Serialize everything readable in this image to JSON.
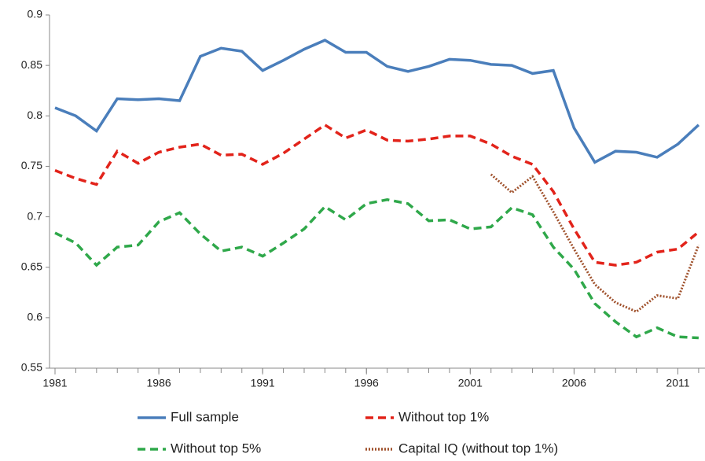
{
  "chart_data": {
    "type": "line",
    "x": [
      1981,
      1982,
      1983,
      1984,
      1985,
      1986,
      1987,
      1988,
      1989,
      1990,
      1991,
      1992,
      1993,
      1994,
      1995,
      1996,
      1997,
      1998,
      1999,
      2000,
      2001,
      2002,
      2003,
      2004,
      2005,
      2006,
      2007,
      2008,
      2009,
      2010,
      2011,
      2012
    ],
    "series": [
      {
        "name": "Full sample",
        "color": "#4a7ebb",
        "dash": "solid",
        "values": [
          0.808,
          0.8,
          0.785,
          0.817,
          0.816,
          0.817,
          0.815,
          0.859,
          0.867,
          0.864,
          0.845,
          0.855,
          0.866,
          0.875,
          0.863,
          0.863,
          0.849,
          0.844,
          0.849,
          0.856,
          0.855,
          0.851,
          0.85,
          0.842,
          0.845,
          0.788,
          0.754,
          0.765,
          0.764,
          0.759,
          0.772,
          0.791
        ]
      },
      {
        "name": "Without top 1%",
        "color": "#e2231a",
        "dash": "dashed",
        "values": [
          0.746,
          0.738,
          0.732,
          0.765,
          0.753,
          0.764,
          0.769,
          0.772,
          0.761,
          0.762,
          0.752,
          0.763,
          0.777,
          0.791,
          0.778,
          0.786,
          0.776,
          0.775,
          0.777,
          0.78,
          0.78,
          0.772,
          0.76,
          0.752,
          0.725,
          0.688,
          0.655,
          0.652,
          0.655,
          0.665,
          0.668,
          0.685
        ]
      },
      {
        "name": "Without top 5%",
        "color": "#2fa84a",
        "dash": "dashed",
        "values": [
          0.684,
          0.674,
          0.652,
          0.67,
          0.672,
          0.695,
          0.704,
          0.683,
          0.666,
          0.67,
          0.661,
          0.674,
          0.688,
          0.71,
          0.697,
          0.713,
          0.717,
          0.713,
          0.696,
          0.697,
          0.688,
          0.69,
          0.709,
          0.702,
          0.67,
          0.648,
          0.614,
          0.596,
          0.581,
          0.59,
          0.581,
          0.58
        ]
      },
      {
        "name": "Capital IQ (without top 1%)",
        "color": "#a0522d",
        "dash": "dotted",
        "values": [
          null,
          null,
          null,
          null,
          null,
          null,
          null,
          null,
          null,
          null,
          null,
          null,
          null,
          null,
          null,
          null,
          null,
          null,
          null,
          null,
          null,
          0.742,
          0.724,
          0.74,
          0.705,
          0.668,
          0.633,
          0.615,
          0.606,
          0.622,
          0.619,
          0.672
        ]
      }
    ],
    "xlim": [
      1980.735,
      2012.155
    ],
    "xticks": [
      1981,
      1986,
      1991,
      1996,
      2001,
      2006,
      2011
    ],
    "ylim": [
      0.55,
      0.9
    ],
    "yticks": [
      0.55,
      0.6,
      0.65,
      0.7,
      0.75,
      0.8,
      0.85,
      0.9
    ],
    "grid": false,
    "legend": "bottom"
  }
}
